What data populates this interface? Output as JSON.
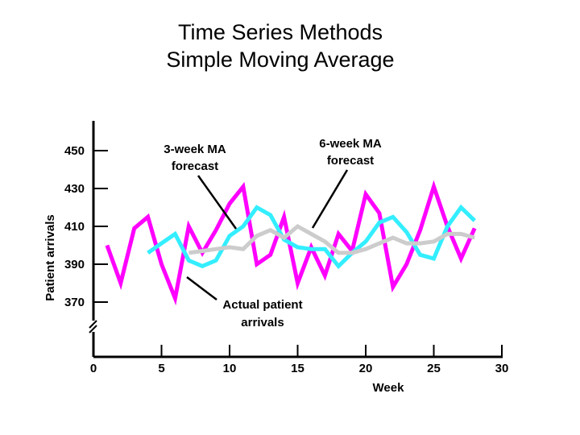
{
  "chart_data": {
    "type": "line",
    "title": [
      "Time Series Methods",
      "Simple Moving Average"
    ],
    "xlabel": "Week",
    "ylabel": "Patient arrivals",
    "xlim": [
      0,
      30
    ],
    "ylim": [
      360,
      460
    ],
    "x_ticks": [
      0,
      5,
      10,
      15,
      20,
      25,
      30
    ],
    "y_ticks": [
      370,
      390,
      410,
      430,
      450
    ],
    "axis_break": true,
    "series": [
      {
        "name": "Actual patient arrivals",
        "color": "#ff00ff",
        "x": [
          1,
          2,
          3,
          4,
          5,
          6,
          7,
          8,
          9,
          10,
          11,
          12,
          13,
          14,
          15,
          16,
          17,
          18,
          19,
          20,
          21,
          22,
          23,
          24,
          25,
          26,
          27,
          28
        ],
        "values": [
          400,
          380,
          409,
          415,
          390,
          372,
          410,
          396,
          408,
          422,
          431,
          390,
          395,
          415,
          380,
          399,
          384,
          406,
          397,
          427,
          417,
          378,
          390,
          408,
          431,
          410,
          393,
          409
        ]
      },
      {
        "name": "3-week MA forecast",
        "color": "#33eeff",
        "x": [
          4,
          5,
          6,
          7,
          8,
          9,
          10,
          11,
          12,
          13,
          14,
          15,
          16,
          17,
          18,
          19,
          20,
          21,
          22,
          23,
          24,
          25,
          26,
          27,
          28
        ],
        "values": [
          396,
          401,
          406,
          392,
          389,
          392,
          405,
          410,
          420,
          416,
          403,
          399,
          398,
          398,
          389,
          396,
          402,
          412,
          415,
          407,
          395,
          393,
          410,
          420,
          413
        ]
      },
      {
        "name": "6-week MA forecast",
        "color": "#cccccc",
        "x": [
          7,
          8,
          9,
          10,
          11,
          12,
          13,
          14,
          15,
          16,
          17,
          18,
          19,
          20,
          21,
          22,
          23,
          24,
          25,
          26,
          27,
          28
        ],
        "values": [
          396,
          397,
          398,
          399,
          398,
          405,
          408,
          404,
          410,
          406,
          402,
          396,
          396,
          398,
          401,
          404,
          401,
          401,
          402,
          406,
          406,
          404
        ]
      }
    ],
    "annotations": [
      {
        "text": [
          "3-week MA",
          "forecast"
        ],
        "points_to": "3-week MA forecast"
      },
      {
        "text": [
          "6-week MA",
          "forecast"
        ],
        "points_to": "6-week MA forecast"
      },
      {
        "text": [
          "Actual patient",
          "arrivals"
        ],
        "points_to": "Actual patient arrivals"
      }
    ]
  }
}
